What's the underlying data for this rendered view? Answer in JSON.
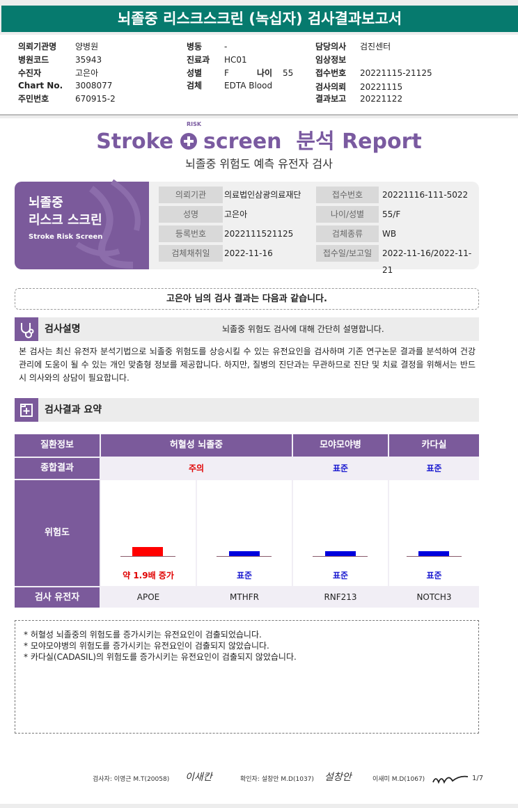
{
  "title": "뇌졸중 리스크스크린 (녹십자) 검사결과보고서",
  "header": {
    "col1": [
      {
        "label": "의뢰기관명",
        "value": "양병원"
      },
      {
        "label": "병원코드",
        "value": "35943"
      },
      {
        "label": "수진자",
        "value": "고은아"
      },
      {
        "label": "Chart No.",
        "value": "3008077"
      },
      {
        "label": "주민번호",
        "value": "670915-2"
      }
    ],
    "col2": [
      {
        "label": "병동",
        "value": "-"
      },
      {
        "label": "진료과",
        "value": "HC01"
      },
      {
        "label": "성별",
        "value": "F"
      },
      {
        "label": "검체",
        "value": "EDTA Blood"
      }
    ],
    "age_label": "나이",
    "age_value": "55",
    "col3": [
      {
        "label": "담당의사",
        "value": "검진센터"
      },
      {
        "label": "임상정보",
        "value": ""
      },
      {
        "label": "접수번호",
        "value": "20221115-21125"
      },
      {
        "label": "검사의뢰",
        "value": "20221115"
      },
      {
        "label": "결과보고",
        "value": "20221122"
      }
    ]
  },
  "logo": {
    "part1": "Stroke",
    "risk": "RISK",
    "part2": "screen",
    "part3": "분석 Report"
  },
  "subtitle": "뇌졸중 위험도 예측 유전자 검사",
  "infobox": {
    "title_line1": "뇌졸중",
    "title_line2": "리스크 스크린",
    "title_en": "Stroke Risk Screen",
    "rows": [
      {
        "l1": "의뢰기관",
        "v1": "의료법인삼광의료재단",
        "l2": "접수번호",
        "v2": "20221116-111-5022"
      },
      {
        "l1": "성명",
        "v1": "고은아",
        "l2": "나이/성별",
        "v2": "55/F"
      },
      {
        "l1": "등록번호",
        "v1": "2022111521125",
        "l2": "검체종류",
        "v2": "WB"
      },
      {
        "l1": "검체채취일",
        "v1": "2022-11-16",
        "l2": "접수일/보고일",
        "v2": "2022-11-16/2022-11-21"
      }
    ]
  },
  "greeting": "고은아 님의 검사 결과는 다음과 같습니다.",
  "section1": {
    "title": "검사설명",
    "desc": "뇌졸중 위험도 검사에 대해 간단히 설명합니다.",
    "icon": "stethoscope-icon"
  },
  "paragraph": "본 검사는 최신 유전자 분석기법으로 뇌졸중 위험도를 상승시킬 수 있는 유전요인을 검사하며 기존 연구논문 결과를 분석하여 건강 관리에 도움이 될 수 있는 개인 맞춤형 정보를 제공합니다. 하지만, 질병의 진단과는 무관하므로 진단 및 치료 결정을 위해서는 반드시 의사와의 상담이 필요합니다.",
  "section2": {
    "title": "검사결과 요약",
    "icon": "add-document-icon"
  },
  "results": {
    "row_labels": {
      "disease": "질환정보",
      "overall": "종합결과",
      "risk": "위험도",
      "gene": "검사 유전자"
    },
    "diseases": [
      "허혈성 뇌졸중",
      "모야모야병",
      "카다실"
    ],
    "overall": [
      {
        "text": "주의",
        "color": "#e00000"
      },
      {
        "text": "표준",
        "color": "#1a1ad0"
      },
      {
        "text": "표준",
        "color": "#1a1ad0"
      }
    ],
    "genes": [
      {
        "gene": "APOE",
        "risk_text": "약 1.9배 증가",
        "risk_color": "#e00000",
        "bar_color": "#ff0000",
        "level": 1.9
      },
      {
        "gene": "MTHFR",
        "risk_text": "표준",
        "risk_color": "#1a1ad0",
        "bar_color": "#0000dd",
        "level": 1.0
      },
      {
        "gene": "RNF213",
        "risk_text": "표준",
        "risk_color": "#1a1ad0",
        "bar_color": "#0000dd",
        "level": 1.0
      },
      {
        "gene": "NOTCH3",
        "risk_text": "표준",
        "risk_color": "#1a1ad0",
        "bar_color": "#0000dd",
        "level": 1.0
      }
    ]
  },
  "notes": [
    "* 허혈성 뇌졸중의 위험도를 증가시키는 유전요인이 검출되었습니다.",
    "* 모야모야병의 위험도를 증가시키는 유전요인이 검출되지 않았습니다.",
    "* 카다실(CADASIL)의 위험도를 증가시키는 유전요인이 검출되지 않았습니다."
  ],
  "footer": {
    "examiner": "검사자: 이영근 M.T(20058)",
    "confirmer": "확인자: 설창안 M.D(1037)",
    "third": "이새미 M.D(1067)",
    "sig1": "이새칸",
    "sig2": "설창안",
    "page": "1/7"
  }
}
